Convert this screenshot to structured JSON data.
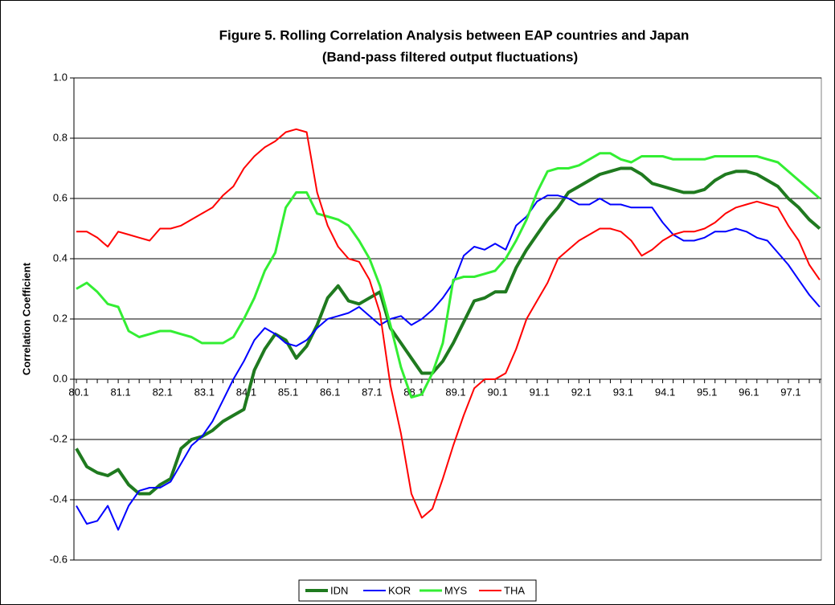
{
  "chart_data": {
    "type": "line",
    "title": "Figure 5. Rolling Correlation Analysis between EAP countries and Japan",
    "subtitle": "(Band-pass filtered output fluctuations)",
    "y_label": "Correlation Coefficient",
    "categories": [
      "80.1",
      null,
      null,
      null,
      "81.1",
      null,
      null,
      null,
      "82.1",
      null,
      null,
      null,
      "83.1",
      null,
      null,
      null,
      "84.1",
      null,
      null,
      null,
      "85.1",
      null,
      null,
      null,
      "86.1",
      null,
      null,
      null,
      "87.1",
      null,
      null,
      null,
      "88.1",
      null,
      null,
      null,
      "89.1",
      null,
      null,
      null,
      "90.1",
      null,
      null,
      null,
      "91.1",
      null,
      null,
      null,
      "92.1",
      null,
      null,
      null,
      "93.1",
      null,
      null,
      null,
      "94.1",
      null,
      null,
      null,
      "95.1",
      null,
      null,
      null,
      "96.1",
      null,
      null,
      null,
      "97.1",
      null,
      null,
      null
    ],
    "series": [
      {
        "name": "IDN",
        "color": "#1f7a1f",
        "values": [
          -0.23,
          -0.29,
          -0.31,
          -0.32,
          -0.3,
          -0.35,
          -0.38,
          -0.38,
          -0.35,
          -0.33,
          -0.23,
          -0.2,
          -0.19,
          -0.17,
          -0.14,
          -0.12,
          -0.1,
          0.03,
          0.1,
          0.15,
          0.13,
          0.07,
          0.11,
          0.18,
          0.27,
          0.31,
          0.26,
          0.25,
          0.27,
          0.29,
          0.17,
          0.12,
          0.07,
          0.02,
          0.02,
          0.06,
          0.12,
          0.19,
          0.26,
          0.27,
          0.29,
          0.29,
          0.37,
          0.43,
          0.48,
          0.53,
          0.57,
          0.62,
          0.64,
          0.66,
          0.68,
          0.69,
          0.7,
          0.7,
          0.68,
          0.65,
          0.64,
          0.63,
          0.62,
          0.62,
          0.63,
          0.66,
          0.68,
          0.69,
          0.69,
          0.68,
          0.66,
          0.64,
          0.6,
          0.57,
          0.53,
          0.5
        ]
      },
      {
        "name": "KOR",
        "color": "#0000ff",
        "values": [
          -0.42,
          -0.48,
          -0.47,
          -0.42,
          -0.5,
          -0.42,
          -0.37,
          -0.36,
          -0.36,
          -0.34,
          -0.28,
          -0.22,
          -0.19,
          -0.14,
          -0.07,
          0.0,
          0.06,
          0.13,
          0.17,
          0.15,
          0.12,
          0.11,
          0.13,
          0.17,
          0.2,
          0.21,
          0.22,
          0.24,
          0.21,
          0.18,
          0.2,
          0.21,
          0.18,
          0.2,
          0.23,
          0.27,
          0.32,
          0.41,
          0.44,
          0.43,
          0.45,
          0.43,
          0.51,
          0.54,
          0.59,
          0.61,
          0.61,
          0.6,
          0.58,
          0.58,
          0.6,
          0.58,
          0.58,
          0.57,
          0.57,
          0.57,
          0.52,
          0.48,
          0.46,
          0.46,
          0.47,
          0.49,
          0.49,
          0.5,
          0.49,
          0.47,
          0.46,
          0.42,
          0.38,
          0.33,
          0.28,
          0.24
        ]
      },
      {
        "name": "MYS",
        "color": "#33ee33",
        "values": [
          0.3,
          0.32,
          0.29,
          0.25,
          0.24,
          0.16,
          0.14,
          0.15,
          0.16,
          0.16,
          0.15,
          0.14,
          0.12,
          0.12,
          0.12,
          0.14,
          0.2,
          0.27,
          0.36,
          0.42,
          0.57,
          0.62,
          0.62,
          0.55,
          0.54,
          0.53,
          0.51,
          0.46,
          0.4,
          0.31,
          0.18,
          0.04,
          -0.06,
          -0.05,
          0.02,
          0.12,
          0.33,
          0.34,
          0.34,
          0.35,
          0.36,
          0.4,
          0.46,
          0.53,
          0.62,
          0.69,
          0.7,
          0.7,
          0.71,
          0.73,
          0.75,
          0.75,
          0.73,
          0.72,
          0.74,
          0.74,
          0.74,
          0.73,
          0.73,
          0.73,
          0.73,
          0.74,
          0.74,
          0.74,
          0.74,
          0.74,
          0.73,
          0.72,
          0.69,
          0.66,
          0.63,
          0.6
        ]
      },
      {
        "name": "THA",
        "color": "#ff0000",
        "values": [
          0.49,
          0.49,
          0.47,
          0.44,
          0.49,
          0.48,
          0.47,
          0.46,
          0.5,
          0.5,
          0.51,
          0.53,
          0.55,
          0.57,
          0.61,
          0.64,
          0.7,
          0.74,
          0.77,
          0.79,
          0.82,
          0.83,
          0.82,
          0.62,
          0.51,
          0.44,
          0.4,
          0.39,
          0.33,
          0.22,
          -0.02,
          -0.18,
          -0.38,
          -0.46,
          -0.43,
          -0.33,
          -0.22,
          -0.12,
          -0.03,
          0.0,
          0.0,
          0.02,
          0.1,
          0.2,
          0.26,
          0.32,
          0.4,
          0.43,
          0.46,
          0.48,
          0.5,
          0.5,
          0.49,
          0.46,
          0.41,
          0.43,
          0.46,
          0.48,
          0.49,
          0.49,
          0.5,
          0.52,
          0.55,
          0.57,
          0.58,
          0.59,
          0.58,
          0.57,
          0.51,
          0.46,
          0.38,
          0.33
        ]
      }
    ],
    "ylim": [
      -0.6,
      1.0
    ],
    "yticks": [
      {
        "value": -0.6,
        "label": "-0.6"
      },
      {
        "value": -0.4,
        "label": "-0.4"
      },
      {
        "value": -0.2,
        "label": "-0.2"
      },
      {
        "value": 0,
        "label": "0.0"
      },
      {
        "value": 0.2,
        "label": "0.2"
      },
      {
        "value": 0.4,
        "label": "0.4"
      },
      {
        "value": 0.6,
        "label": "0.6"
      },
      {
        "value": 0.8,
        "label": "0.8"
      },
      {
        "value": 1.0,
        "label": "1.0"
      }
    ],
    "grid": true,
    "legend": "bottom"
  }
}
